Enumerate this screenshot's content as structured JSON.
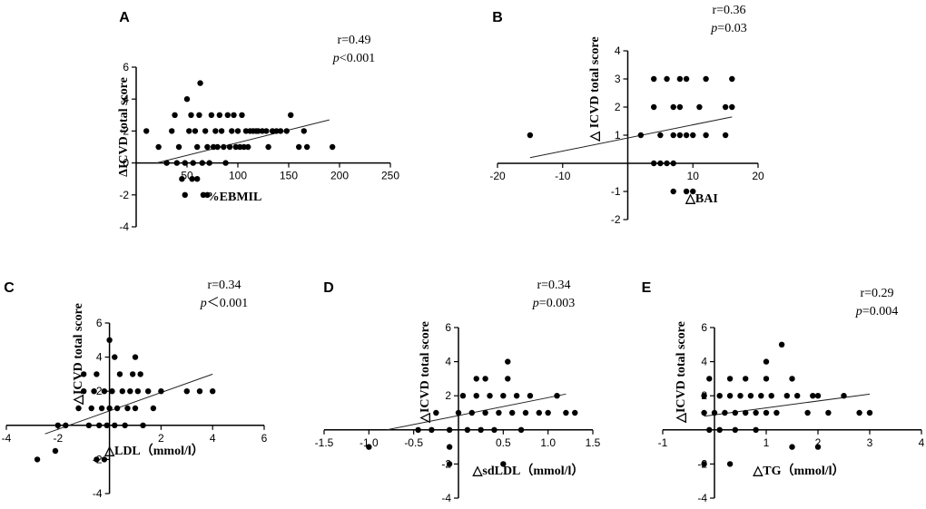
{
  "chart_data": [
    {
      "panel": "A",
      "type": "scatter",
      "xlabel": "%EBMIL",
      "ylabel": "ΔICVD total score",
      "xlim": [
        0,
        250
      ],
      "ylim": [
        -4,
        6
      ],
      "xticks": [
        "50",
        "100",
        "150",
        "200",
        "250"
      ],
      "yticks": [
        "-4",
        "-2",
        "0",
        "2",
        "4",
        "6"
      ],
      "stat_r": "r=0.49",
      "stat_p_sym": "p",
      "stat_p_rest": "<0.001",
      "fit": [
        [
          20,
          0
        ],
        [
          190,
          2.7
        ]
      ],
      "points": [
        [
          10,
          2
        ],
        [
          22,
          1
        ],
        [
          35,
          2
        ],
        [
          38,
          3
        ],
        [
          30,
          0
        ],
        [
          40,
          0
        ],
        [
          42,
          1
        ],
        [
          45,
          -1
        ],
        [
          48,
          0
        ],
        [
          48,
          -2
        ],
        [
          50,
          4
        ],
        [
          52,
          2
        ],
        [
          54,
          3
        ],
        [
          55,
          -1
        ],
        [
          56,
          0
        ],
        [
          58,
          2
        ],
        [
          60,
          1
        ],
        [
          60,
          -1
        ],
        [
          62,
          3
        ],
        [
          63,
          5
        ],
        [
          65,
          0
        ],
        [
          66,
          -2
        ],
        [
          68,
          2
        ],
        [
          70,
          1
        ],
        [
          70,
          -2
        ],
        [
          72,
          0
        ],
        [
          74,
          3
        ],
        [
          76,
          1
        ],
        [
          78,
          2
        ],
        [
          80,
          1
        ],
        [
          82,
          3
        ],
        [
          84,
          2
        ],
        [
          86,
          1
        ],
        [
          88,
          0
        ],
        [
          90,
          3
        ],
        [
          92,
          1
        ],
        [
          94,
          2
        ],
        [
          96,
          3
        ],
        [
          98,
          1
        ],
        [
          100,
          2
        ],
        [
          102,
          1
        ],
        [
          104,
          3
        ],
        [
          106,
          1
        ],
        [
          108,
          2
        ],
        [
          110,
          1
        ],
        [
          112,
          2
        ],
        [
          115,
          2
        ],
        [
          118,
          2
        ],
        [
          120,
          2
        ],
        [
          124,
          2
        ],
        [
          128,
          2
        ],
        [
          130,
          1
        ],
        [
          134,
          2
        ],
        [
          138,
          2
        ],
        [
          142,
          2
        ],
        [
          148,
          2
        ],
        [
          152,
          3
        ],
        [
          160,
          1
        ],
        [
          165,
          2
        ],
        [
          168,
          1
        ],
        [
          193,
          1
        ]
      ]
    },
    {
      "panel": "B",
      "type": "scatter",
      "xlabel": "△BAI",
      "ylabel": "△ ICVD total score",
      "xlim": [
        -20,
        20
      ],
      "ylim": [
        -2,
        4
      ],
      "xticks": [
        "-20",
        "-10",
        "10",
        "20"
      ],
      "yticks": [
        "-2",
        "-1",
        "1",
        "2",
        "3",
        "4"
      ],
      "stat_r": "r=0.36",
      "stat_p_sym": "p",
      "stat_p_rest": "=0.03",
      "fit": [
        [
          -15,
          0.2
        ],
        [
          16,
          1.65
        ]
      ],
      "points": [
        [
          -15,
          1
        ],
        [
          2,
          1
        ],
        [
          4,
          3
        ],
        [
          4,
          2
        ],
        [
          4,
          0
        ],
        [
          5,
          0
        ],
        [
          5,
          1
        ],
        [
          6,
          0
        ],
        [
          6,
          3
        ],
        [
          7,
          -1
        ],
        [
          7,
          1
        ],
        [
          7,
          2
        ],
        [
          7,
          0
        ],
        [
          8,
          3
        ],
        [
          8,
          1
        ],
        [
          8,
          2
        ],
        [
          9,
          -1
        ],
        [
          9,
          1
        ],
        [
          9,
          3
        ],
        [
          10,
          -1
        ],
        [
          10,
          1
        ],
        [
          11,
          2
        ],
        [
          12,
          3
        ],
        [
          12,
          1
        ],
        [
          15,
          1
        ],
        [
          15,
          2
        ],
        [
          16,
          3
        ],
        [
          16,
          2
        ]
      ]
    },
    {
      "panel": "C",
      "type": "scatter",
      "xlabel": "△LDL（mmol/l）",
      "ylabel": "△ICVD total score",
      "xlim": [
        -4,
        6
      ],
      "ylim": [
        -4,
        6
      ],
      "xticks": [
        "-4",
        "-2",
        "2",
        "4",
        "6"
      ],
      "yticks": [
        "-4",
        "-2",
        "2",
        "4",
        "6"
      ],
      "stat_r": "r=0.34",
      "stat_p_sym": "p",
      "stat_p_rest": "＜0.001",
      "fit": [
        [
          -2.5,
          -0.5
        ],
        [
          4,
          3
        ]
      ],
      "points": [
        [
          -2.8,
          -2
        ],
        [
          -2.1,
          -1.5
        ],
        [
          -2,
          0
        ],
        [
          -1.7,
          0
        ],
        [
          -1.2,
          1
        ],
        [
          -1,
          2
        ],
        [
          -1,
          3
        ],
        [
          -0.8,
          0
        ],
        [
          -0.7,
          1
        ],
        [
          -0.6,
          2
        ],
        [
          -0.5,
          3
        ],
        [
          -0.4,
          0
        ],
        [
          -0.3,
          1
        ],
        [
          -0.2,
          2
        ],
        [
          -0.1,
          0
        ],
        [
          0,
          1
        ],
        [
          0.1,
          2
        ],
        [
          0.2,
          0
        ],
        [
          0.3,
          1
        ],
        [
          0.4,
          3
        ],
        [
          0.5,
          2
        ],
        [
          0.6,
          0
        ],
        [
          0.7,
          1
        ],
        [
          0.8,
          2
        ],
        [
          0.9,
          3
        ],
        [
          1,
          1
        ],
        [
          1,
          4
        ],
        [
          1.1,
          2
        ],
        [
          1.2,
          3
        ],
        [
          1.3,
          0
        ],
        [
          1.5,
          2
        ],
        [
          1.7,
          1
        ],
        [
          2,
          2
        ],
        [
          3,
          2
        ],
        [
          3.5,
          2
        ],
        [
          4,
          2
        ],
        [
          0,
          5
        ],
        [
          0.2,
          4
        ],
        [
          -0.5,
          -2
        ],
        [
          -0.2,
          -2
        ]
      ]
    },
    {
      "panel": "D",
      "type": "scatter",
      "xlabel": "△sdLDL（mmol/l）",
      "ylabel": "△ICVD total score",
      "xlim": [
        -1.5,
        1.5
      ],
      "ylim": [
        -4,
        6
      ],
      "xticks": [
        "-1.5",
        "-1.0",
        "-0.5",
        "0.5",
        "1.0",
        "1.5"
      ],
      "yticks": [
        "-4",
        "-2",
        "2",
        "4",
        "6"
      ],
      "stat_r": "r=0.34",
      "stat_p_sym": "p",
      "stat_p_rest": "=0.003",
      "fit": [
        [
          -0.8,
          0
        ],
        [
          1.2,
          2.1
        ]
      ],
      "points": [
        [
          -1,
          -1
        ],
        [
          -0.45,
          0
        ],
        [
          -0.3,
          0
        ],
        [
          -0.25,
          1
        ],
        [
          -0.1,
          -1
        ],
        [
          -0.1,
          0
        ],
        [
          0,
          1
        ],
        [
          0.05,
          2
        ],
        [
          0.1,
          0
        ],
        [
          0.15,
          1
        ],
        [
          0.2,
          2
        ],
        [
          0.2,
          3
        ],
        [
          0.25,
          0
        ],
        [
          0.3,
          1
        ],
        [
          0.3,
          3
        ],
        [
          0.35,
          2
        ],
        [
          0.4,
          0
        ],
        [
          0.45,
          1
        ],
        [
          0.5,
          2
        ],
        [
          0.55,
          3
        ],
        [
          0.55,
          4
        ],
        [
          0.6,
          1
        ],
        [
          0.65,
          2
        ],
        [
          0.7,
          0
        ],
        [
          0.75,
          1
        ],
        [
          0.8,
          2
        ],
        [
          0.9,
          1
        ],
        [
          1,
          1
        ],
        [
          1.1,
          2
        ],
        [
          1.2,
          1
        ],
        [
          1.3,
          1
        ],
        [
          -0.1,
          -2
        ],
        [
          0.5,
          -2
        ]
      ]
    },
    {
      "panel": "E",
      "type": "scatter",
      "xlabel": "△TG（mmol/l）",
      "ylabel": "△ICVD total score",
      "xlim": [
        -1,
        4
      ],
      "ylim": [
        -4,
        6
      ],
      "xticks": [
        "-1",
        "1",
        "2",
        "3",
        "4"
      ],
      "yticks": [
        "-4",
        "-2",
        "2",
        "4",
        "6"
      ],
      "stat_r": "r=0.29",
      "stat_p_sym": "p",
      "stat_p_rest": "=0.004",
      "fit": [
        [
          -0.2,
          0.8
        ],
        [
          3,
          2.1
        ]
      ],
      "points": [
        [
          -0.2,
          1
        ],
        [
          -0.2,
          2
        ],
        [
          -0.1,
          3
        ],
        [
          -0.1,
          0
        ],
        [
          0,
          1
        ],
        [
          0.1,
          2
        ],
        [
          0.1,
          0
        ],
        [
          0.2,
          1
        ],
        [
          0.3,
          2
        ],
        [
          0.3,
          3
        ],
        [
          0.4,
          1
        ],
        [
          0.4,
          0
        ],
        [
          0.5,
          2
        ],
        [
          0.6,
          1
        ],
        [
          0.6,
          3
        ],
        [
          0.7,
          2
        ],
        [
          0.8,
          1
        ],
        [
          0.8,
          0
        ],
        [
          0.9,
          2
        ],
        [
          1,
          4
        ],
        [
          1,
          3
        ],
        [
          1,
          1
        ],
        [
          1.1,
          2
        ],
        [
          1.2,
          1
        ],
        [
          1.3,
          5
        ],
        [
          1.4,
          2
        ],
        [
          1.5,
          3
        ],
        [
          1.6,
          2
        ],
        [
          1.8,
          1
        ],
        [
          1.9,
          2
        ],
        [
          2,
          2
        ],
        [
          2.2,
          1
        ],
        [
          2.5,
          2
        ],
        [
          2.8,
          1
        ],
        [
          3,
          1
        ],
        [
          1.5,
          -1
        ],
        [
          2,
          -1
        ],
        [
          -0.2,
          -2
        ],
        [
          0.3,
          -2
        ]
      ]
    }
  ]
}
